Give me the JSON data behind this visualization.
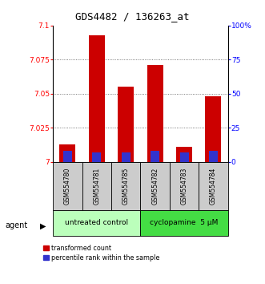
{
  "title": "GDS4482 / 136263_at",
  "samples": [
    "GSM554780",
    "GSM554781",
    "GSM554785",
    "GSM554782",
    "GSM554783",
    "GSM554784"
  ],
  "red_values": [
    7.013,
    7.093,
    7.055,
    7.071,
    7.011,
    7.048
  ],
  "blue_values": [
    7.008,
    7.007,
    7.007,
    7.008,
    7.007,
    7.008
  ],
  "ylim_left": [
    7.0,
    7.1
  ],
  "yticks_left": [
    7.0,
    7.025,
    7.05,
    7.075,
    7.1
  ],
  "ytick_labels_left": [
    "7",
    "7.025",
    "7.05",
    "7.075",
    "7.1"
  ],
  "ylim_right": [
    0,
    100
  ],
  "yticks_right": [
    0,
    25,
    50,
    75,
    100
  ],
  "ytick_labels_right": [
    "0",
    "25",
    "50",
    "75",
    "100%"
  ],
  "group1_label": "untreated control",
  "group2_label": "cyclopamine  5 μM",
  "group1_indices": [
    0,
    1,
    2
  ],
  "group2_indices": [
    3,
    4,
    5
  ],
  "bar_width": 0.55,
  "red_color": "#cc0000",
  "blue_color": "#3333cc",
  "group1_bg": "#bbffbb",
  "group2_bg": "#44dd44",
  "sample_bg": "#cccccc",
  "agent_label": "agent",
  "legend_red": "transformed count",
  "legend_blue": "percentile rank within the sample",
  "grid_color": "#555555",
  "base_value": 7.0
}
